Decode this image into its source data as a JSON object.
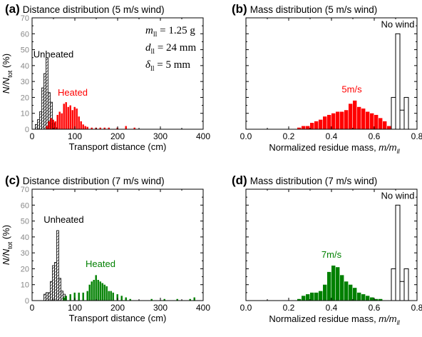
{
  "chart_data": [
    {
      "id": "a",
      "type": "bar",
      "title": "Distance distribution (5 m/s wind)",
      "panel_letter": "(a)",
      "xlabel": "Transport distance (cm)",
      "ylabel": "N/N_tot (%)",
      "xlim": [
        0,
        400
      ],
      "ylim": [
        0,
        70
      ],
      "xticks": [
        0,
        100,
        200,
        300,
        400
      ],
      "yticks": [
        0,
        10,
        20,
        30,
        40,
        50,
        60,
        70
      ],
      "bar_width": 5,
      "series": [
        {
          "name": "Unheated",
          "style": "hatched",
          "color": "#000000",
          "x": [
            10,
            15,
            20,
            25,
            30,
            35,
            40,
            45,
            50,
            55
          ],
          "values": [
            3,
            6,
            11,
            26,
            35,
            45,
            23,
            17,
            4,
            1
          ]
        },
        {
          "name": "Heated",
          "style": "filled",
          "color": "#ff0000",
          "x": [
            35,
            40,
            45,
            50,
            55,
            60,
            65,
            70,
            75,
            80,
            85,
            90,
            95,
            100,
            105,
            110,
            115,
            120,
            125,
            130,
            140,
            150,
            160,
            170,
            180,
            200,
            220,
            240
          ],
          "values": [
            2,
            5,
            7,
            6,
            5,
            9,
            11,
            10,
            16,
            17,
            14,
            15,
            12,
            14,
            13,
            8,
            5,
            3,
            2,
            1.5,
            1,
            1,
            1,
            1,
            1,
            1,
            2,
            1
          ]
        }
      ],
      "annotations": {
        "unheated": "Unheated",
        "heated": "Heated",
        "params": [
          {
            "sym": "m",
            "sub": "ll",
            "val": " = 1.25 g"
          },
          {
            "sym": "d",
            "sub": "ll",
            "val": " = 24 mm"
          },
          {
            "sym": "δ",
            "sub": "ll",
            "val": " = 5 mm"
          }
        ]
      }
    },
    {
      "id": "b",
      "type": "bar",
      "title": "Mass distribution (5 m/s wind)",
      "panel_letter": "(b)",
      "xlabel": "Normalized residue mass, m/m_ll",
      "ylabel": "",
      "xlim": [
        0.0,
        0.8
      ],
      "ylim": [
        0,
        70
      ],
      "xticks": [
        0.0,
        0.2,
        0.4,
        0.6,
        0.8
      ],
      "bar_width": 0.02,
      "series": [
        {
          "name": "5m/s",
          "style": "filled",
          "color": "#ff0000",
          "x": [
            0.25,
            0.27,
            0.29,
            0.31,
            0.33,
            0.35,
            0.37,
            0.39,
            0.41,
            0.43,
            0.45,
            0.47,
            0.49,
            0.51,
            0.53,
            0.55,
            0.57,
            0.59,
            0.61,
            0.63,
            0.65,
            0.67
          ],
          "values": [
            1,
            2,
            2,
            4,
            5,
            6,
            8,
            9,
            10,
            11,
            11,
            12,
            16,
            18,
            14,
            13,
            11,
            10,
            9,
            7,
            5,
            2
          ]
        },
        {
          "name": "No wind",
          "style": "open",
          "color": "#000000",
          "x": [
            0.69,
            0.71,
            0.73,
            0.75
          ],
          "values": [
            20,
            60,
            12,
            20
          ]
        }
      ],
      "annotations": {
        "heated": "5m/s",
        "nowind": "No wind"
      }
    },
    {
      "id": "c",
      "type": "bar",
      "title": "Distance distribution (7 m/s wind)",
      "panel_letter": "(c)",
      "xlabel": "Transport distance (cm)",
      "ylabel": "N/N_tot (%)",
      "xlim": [
        0,
        400
      ],
      "ylim": [
        0,
        70
      ],
      "xticks": [
        0,
        100,
        200,
        300,
        400
      ],
      "yticks": [
        0,
        10,
        20,
        30,
        40,
        50,
        60,
        70
      ],
      "bar_width": 5,
      "series": [
        {
          "name": "Unheated",
          "style": "hatched",
          "color": "#000000",
          "x": [
            30,
            35,
            40,
            45,
            50,
            55,
            60,
            65,
            70,
            75
          ],
          "values": [
            4,
            5,
            5,
            12,
            22,
            24,
            44,
            14,
            6,
            4
          ]
        },
        {
          "name": "Heated",
          "style": "filled",
          "color": "#008000",
          "x": [
            75,
            80,
            90,
            100,
            110,
            120,
            130,
            135,
            140,
            145,
            150,
            155,
            160,
            165,
            170,
            175,
            180,
            185,
            190,
            200,
            210,
            220,
            230,
            280,
            310,
            340,
            370,
            380
          ],
          "values": [
            2,
            3,
            4,
            5,
            5,
            5,
            6,
            10,
            12,
            13,
            16,
            13,
            12,
            11,
            10,
            9,
            6,
            6,
            5,
            4,
            3,
            2,
            1,
            1,
            1,
            1,
            1,
            2
          ]
        }
      ],
      "annotations": {
        "unheated": "Unheated",
        "heated": "Heated"
      }
    },
    {
      "id": "d",
      "type": "bar",
      "title": "Mass distribution (7 m/s wind)",
      "panel_letter": "(d)",
      "xlabel": "Normalized residue mass, m/m_ll",
      "ylabel": "",
      "xlim": [
        0.0,
        0.8
      ],
      "ylim": [
        0,
        70
      ],
      "xticks": [
        0.0,
        0.2,
        0.4,
        0.6,
        0.8
      ],
      "bar_width": 0.02,
      "series": [
        {
          "name": "7m/s",
          "style": "filled",
          "color": "#008000",
          "x": [
            0.25,
            0.27,
            0.29,
            0.31,
            0.33,
            0.35,
            0.37,
            0.39,
            0.41,
            0.43,
            0.45,
            0.47,
            0.49,
            0.51,
            0.53,
            0.55,
            0.57,
            0.59,
            0.61,
            0.63
          ],
          "values": [
            1,
            3,
            4,
            5,
            5,
            6,
            10,
            18,
            22,
            21,
            16,
            12,
            10,
            8,
            5,
            4,
            3,
            2,
            1,
            1
          ]
        },
        {
          "name": "No wind",
          "style": "open",
          "color": "#000000",
          "x": [
            0.69,
            0.71,
            0.73,
            0.75
          ],
          "values": [
            20,
            60,
            12,
            20
          ]
        }
      ],
      "annotations": {
        "heated": "7m/s",
        "nowind": "No wind"
      }
    }
  ]
}
